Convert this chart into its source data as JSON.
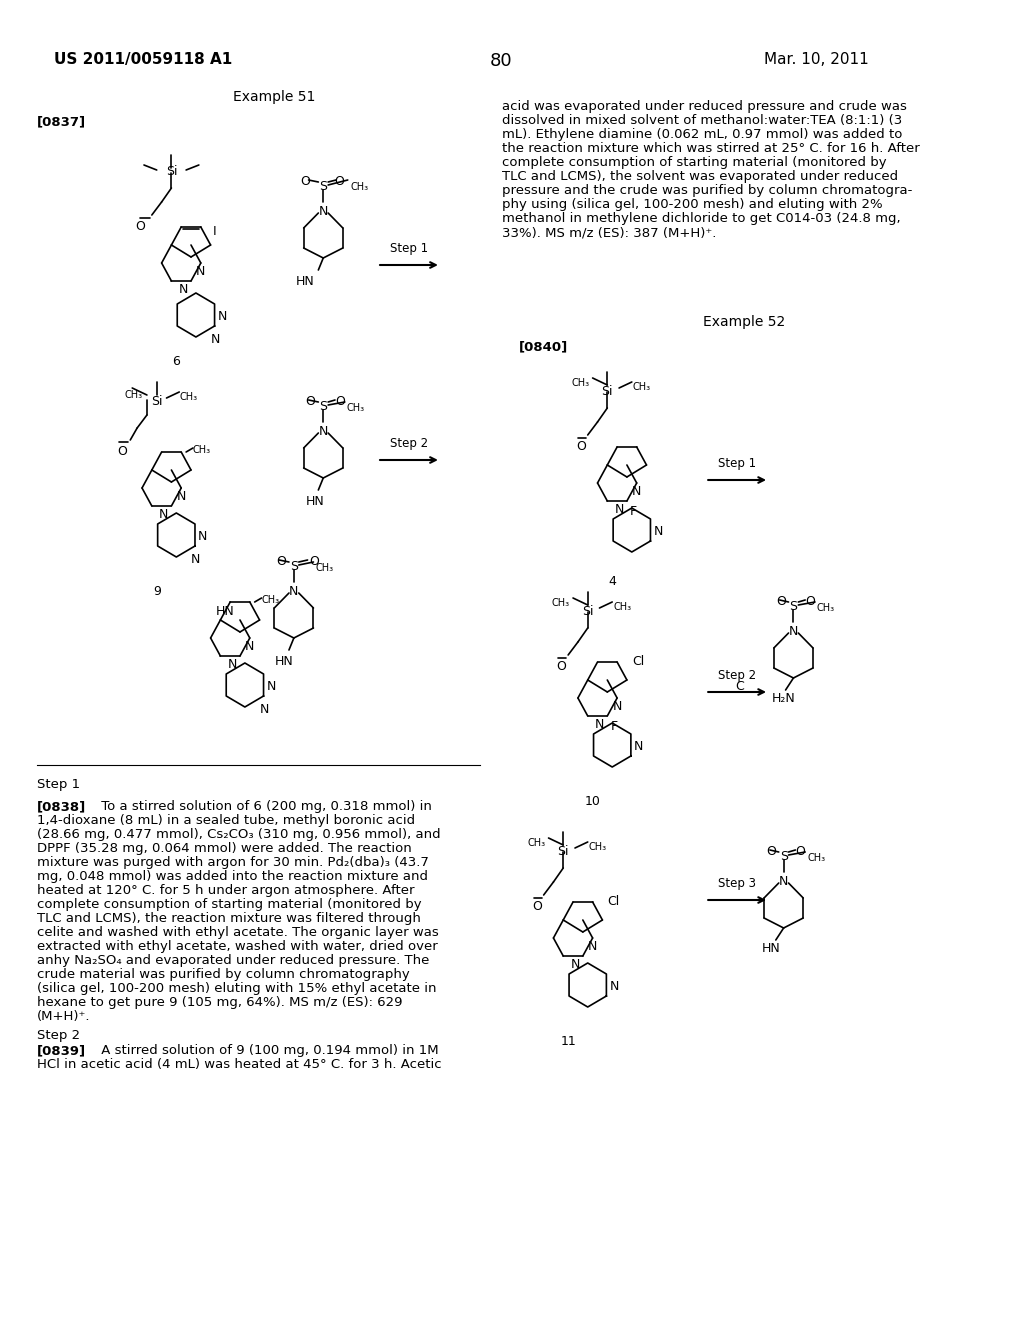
{
  "page_bg": "#ffffff",
  "header_left": "US 2011/0059118 A1",
  "header_right": "Mar. 10, 2011",
  "page_number": "80",
  "title_example51": "Example 51",
  "title_example52": "Example 52",
  "tag_0837": "[0837]",
  "tag_0840": "[0840]",
  "step1_label": "Step 1",
  "step2_label": "Step 2",
  "step3_label": "Step 3",
  "label_c": "C",
  "compound_labels": [
    "6",
    "9",
    "4",
    "10",
    "11"
  ],
  "text_step1_title": "Step 1",
  "text_step2_title": "Step 2",
  "body_text_0838": "[0838] To a stirred solution of 6 (200 mg, 0.318 mmol) in\n1,4-dioxane (8 mL) in a sealed tube, methyl boronic acid\n(28.66 mg, 0.477 mmol), Cs₂CO₃ (310 mg, 0.956 mmol), and\nDPPF (35.28 mg, 0.064 mmol) were added. The reaction\nmixture was purged with argon for 30 min. Pd₂(dba)₃ (43.7\nmg, 0.048 mmol) was added into the reaction mixture and\nheated at 120° C. for 5 h under argon atmosphere. After\ncomplete consumption of starting material (monitored by\nTLC and LCMS), the reaction mixture was filtered through\ncelite and washed with ethyl acetate. The organic layer was\nextracted with ethyl acetate, washed with water, dried over\nanhy Na₂SO₄ and evaporated under reduced pressure. The\ncrude material was purified by column chromatography\n(silica gel, 100-200 mesh) eluting with 15% ethyl acetate in\nhexane to get pure 9 (105 mg, 64%). MS m/z (ES): 629\n(M+H)⁺.",
  "text_step2_title2": "Step 2",
  "body_text_0839": "[0839] A stirred solution of 9 (100 mg, 0.194 mmol) in 1M\nHCl in acetic acid (4 mL) was heated at 45° C. for 3 h. Acetic",
  "right_col_text": "acid was evaporated under reduced pressure and crude was\ndissolved in mixed solvent of methanol:water:TEA (8:1:1) (3\nmL). Ethylene diamine (0.062 mL, 0.97 mmol) was added to\nthe reaction mixture which was stirred at 25° C. for 16 h. After\ncomplete consumption of starting material (monitored by\nTLC and LCMS), the solvent was evaporated under reduced\npressure and the crude was purified by column chromatogra-\nphy using (silica gel, 100-200 mesh) and eluting with 2%\nmethanol in methylene dichloride to get C014-03 (24.8 mg,\n33%). MS m/z (ES): 387 (M+H)⁺.",
  "font_family": "DejaVu Sans",
  "header_fontsize": 11,
  "body_fontsize": 9.5,
  "title_fontsize": 10
}
